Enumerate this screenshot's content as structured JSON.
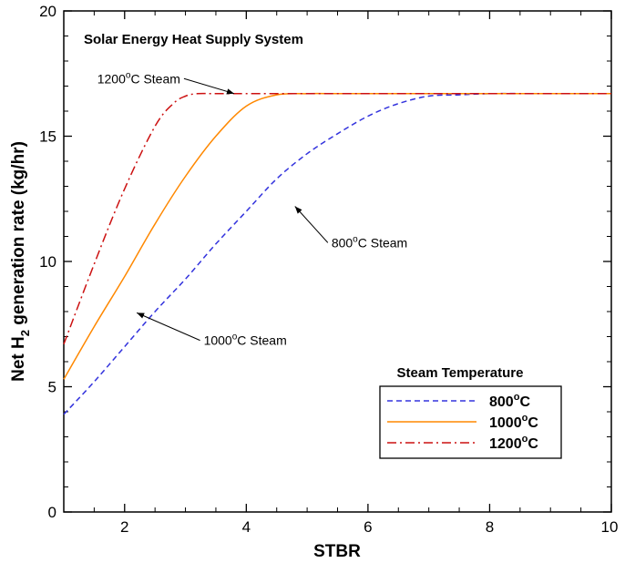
{
  "chart_data": {
    "type": "line",
    "title": "Solar Energy Heat Supply System",
    "xlabel": "STBR",
    "ylabel": {
      "prefix": "Net H",
      "sub": "2",
      "suffix": " generation rate (kg/hr)"
    },
    "xlim": [
      1,
      10
    ],
    "ylim": [
      0,
      20
    ],
    "xticks": [
      2,
      4,
      6,
      8,
      10
    ],
    "yticks": [
      0,
      5,
      10,
      15,
      20
    ],
    "grid": false,
    "legend": {
      "title": "Steam Temperature",
      "position": "bottom-right"
    },
    "series": [
      {
        "name": "800°C",
        "deg": "o",
        "unit": "C",
        "color": "#3333dd",
        "dash": "6,4",
        "x": [
          1,
          1.5,
          2,
          2.5,
          3,
          3.5,
          4,
          4.5,
          5,
          5.5,
          6,
          6.5,
          7,
          7.5,
          8,
          9,
          10
        ],
        "y": [
          3.9,
          5.2,
          6.6,
          8.0,
          9.3,
          10.7,
          12.0,
          13.3,
          14.3,
          15.1,
          15.8,
          16.3,
          16.6,
          16.65,
          16.7,
          16.7,
          16.7
        ]
      },
      {
        "name": "1000°C",
        "deg": "o",
        "unit": "C",
        "color": "#ff8800",
        "dash": "",
        "x": [
          1,
          1.5,
          2,
          2.5,
          3,
          3.5,
          4,
          4.5,
          5,
          5.5,
          6,
          7,
          8,
          9,
          10
        ],
        "y": [
          5.3,
          7.4,
          9.4,
          11.5,
          13.4,
          15.0,
          16.2,
          16.65,
          16.7,
          16.7,
          16.7,
          16.7,
          16.7,
          16.7,
          16.7
        ]
      },
      {
        "name": "1200°C",
        "deg": "o",
        "unit": "C",
        "color": "#cc1111",
        "dash": "10,4,2,4",
        "x": [
          1,
          1.5,
          2,
          2.5,
          2.8,
          3,
          3.2,
          3.5,
          4,
          5,
          6,
          7,
          8,
          9,
          10
        ],
        "y": [
          6.7,
          9.9,
          12.9,
          15.4,
          16.3,
          16.6,
          16.7,
          16.7,
          16.7,
          16.7,
          16.7,
          16.7,
          16.7,
          16.7,
          16.7
        ]
      }
    ],
    "annotations": [
      {
        "pre": "1200",
        "deg": "o",
        "post": "C Steam",
        "text_at": [
          1.55,
          17.3
        ],
        "arrow_to": [
          3.8,
          16.7
        ]
      },
      {
        "pre": "800",
        "deg": "o",
        "post": "C Steam",
        "text_at": [
          5.4,
          10.75
        ],
        "arrow_to": [
          4.8,
          12.2
        ]
      },
      {
        "pre": "1000",
        "deg": "o",
        "post": "C Steam",
        "text_at": [
          3.3,
          6.85
        ],
        "arrow_to": [
          2.2,
          7.95
        ]
      }
    ]
  }
}
